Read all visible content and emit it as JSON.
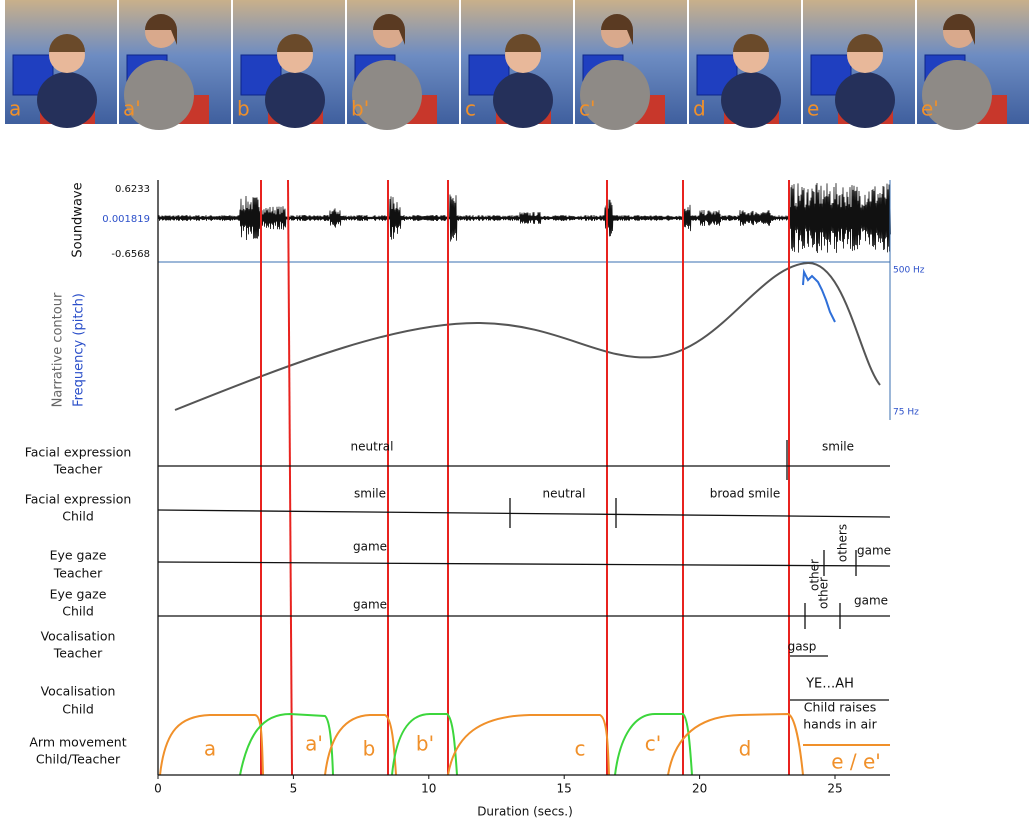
{
  "frames": [
    "a",
    "a'",
    "b",
    "b'",
    "c",
    "c'",
    "d",
    "e",
    "e'"
  ],
  "soundwave": {
    "label": "Soundwave",
    "max": "0.6233",
    "mid": "0.001819",
    "min": "-0.6568"
  },
  "pitch": {
    "label": "Narrative contour",
    "sublabel": "Frequency (pitch)",
    "high": "500 Hz",
    "low": "75 Hz"
  },
  "tracks": [
    {
      "label": [
        "Facial expression",
        "Teacher"
      ],
      "annotations": [
        "neutral",
        "smile"
      ]
    },
    {
      "label": [
        "Facial expression",
        "Child"
      ],
      "annotations": [
        "smile",
        "neutral",
        "broad smile"
      ]
    },
    {
      "label": [
        "Eye gaze",
        "Teacher"
      ],
      "annotations": [
        "game",
        "other",
        "others",
        "game"
      ]
    },
    {
      "label": [
        "Eye gaze",
        "Child"
      ],
      "annotations": [
        "game",
        "other",
        "game"
      ]
    },
    {
      "label": [
        "Vocalisation",
        "Teacher"
      ],
      "annotations": [
        "gasp"
      ]
    },
    {
      "label": [
        "Vocalisation",
        "Child"
      ],
      "annotations": [
        "YE…AH",
        "Child raises",
        "hands in air"
      ]
    },
    {
      "label": [
        "Arm movement",
        "Child/Teacher"
      ],
      "annotations": [
        "a",
        "a'",
        "b",
        "b'",
        "c",
        "c'",
        "d",
        "e / e'"
      ]
    }
  ],
  "axis": {
    "title": "Duration (secs.)",
    "ticks": [
      0,
      5,
      10,
      15,
      20,
      25
    ]
  }
}
